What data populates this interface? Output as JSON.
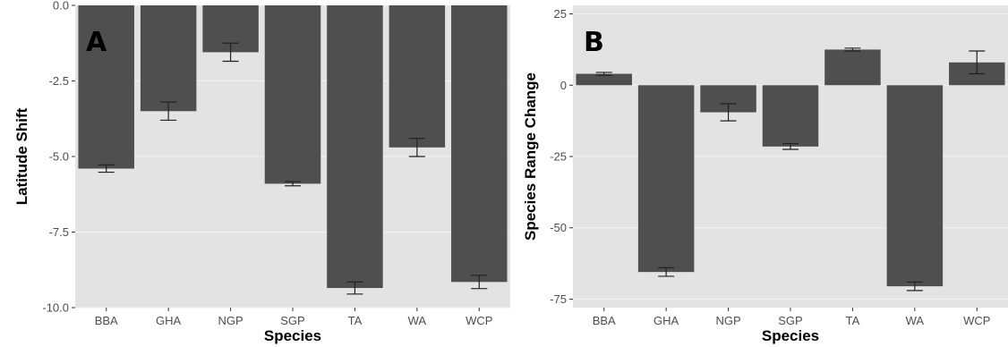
{
  "colors": {
    "panel_bg": "#e3e3e3",
    "bar": "#4f4f4f",
    "error_bar": "#222222",
    "tick_text": "#4d4d4d",
    "grid": "#f2f2f2"
  },
  "chart_data": [
    {
      "type": "bar",
      "panel_label": "A",
      "xlabel": "Species",
      "ylabel": "Latitude Shift",
      "categories": [
        "BBA",
        "GHA",
        "NGP",
        "SGP",
        "TA",
        "WA",
        "WCP"
      ],
      "values": [
        -5.4,
        -3.5,
        -1.55,
        -5.9,
        -9.35,
        -4.7,
        -9.15
      ],
      "errors": [
        0.12,
        0.3,
        0.3,
        0.07,
        0.2,
        0.3,
        0.22
      ],
      "ylim": [
        0,
        -10
      ],
      "y_reversed": true,
      "yticks": [
        0,
        -2.5,
        -5,
        -7.5,
        -10
      ],
      "ytick_labels": [
        "0.0",
        "-2.5",
        "-5.0",
        "-7.5",
        "-10.0"
      ],
      "grid": false
    },
    {
      "type": "bar",
      "panel_label": "B",
      "xlabel": "Species",
      "ylabel": "Species Range Change",
      "categories": [
        "BBA",
        "GHA",
        "NGP",
        "SGP",
        "TA",
        "WA",
        "WCP"
      ],
      "values": [
        4,
        -65.5,
        -9.5,
        -21.5,
        12.5,
        -70.5,
        8
      ],
      "errors": [
        0.5,
        1.5,
        3,
        1,
        0.5,
        1.5,
        4
      ],
      "ylim": [
        28,
        -78
      ],
      "y_reversed": true,
      "yticks": [
        25,
        0,
        -25,
        -50,
        -75
      ],
      "ytick_labels": [
        "25",
        "0",
        "-25",
        "-50",
        "-75"
      ],
      "grid": false
    }
  ]
}
